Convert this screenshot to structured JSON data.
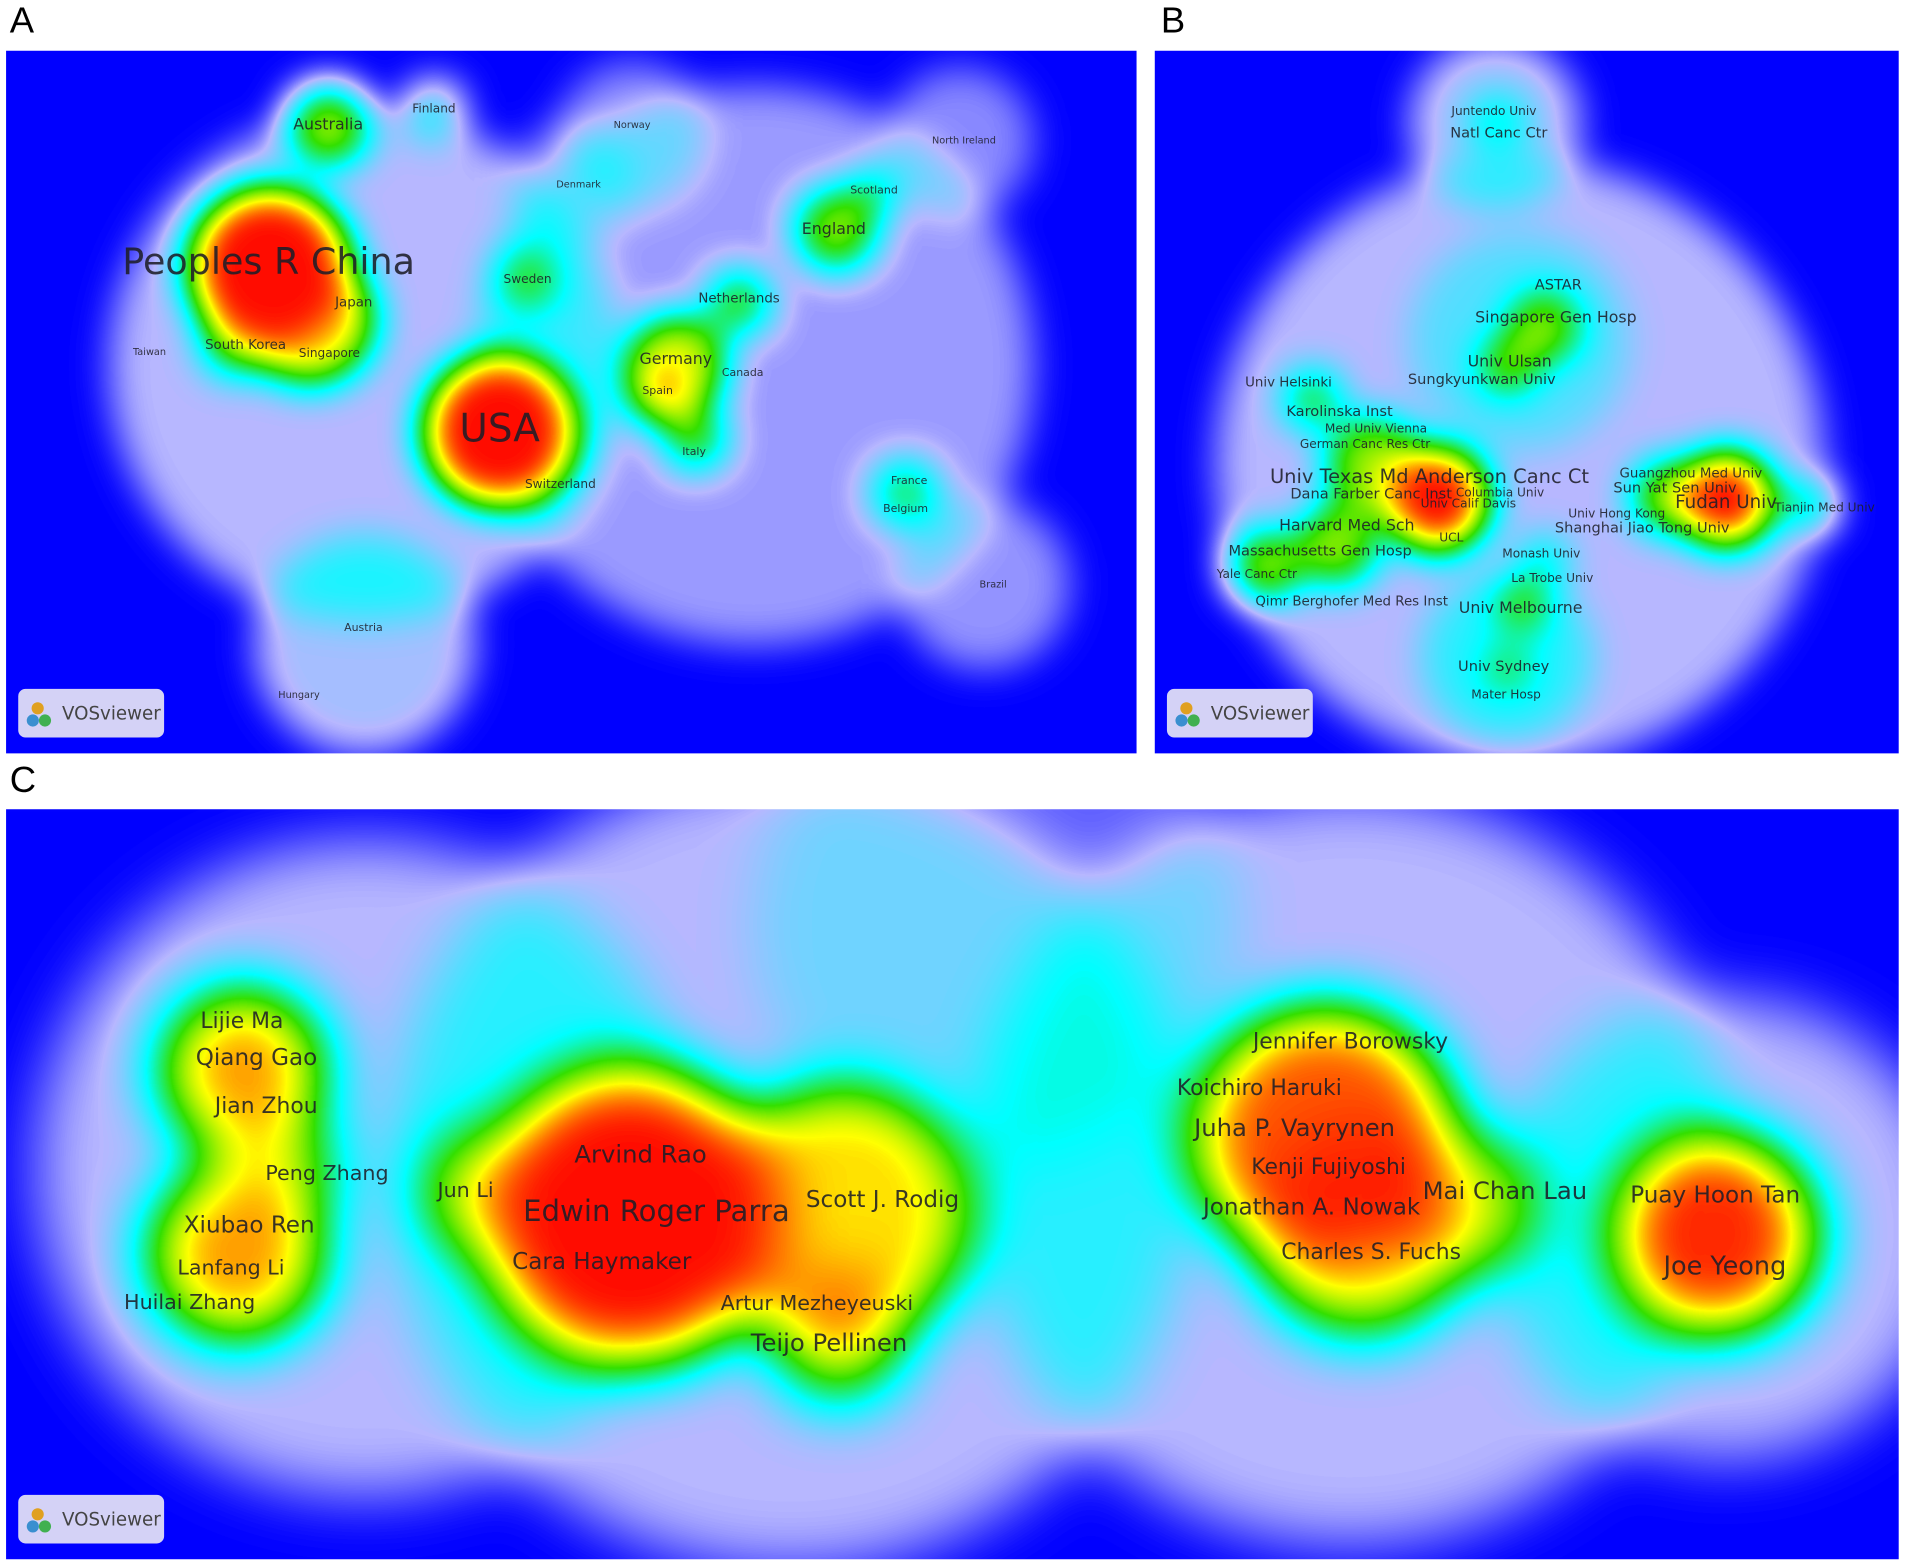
{
  "panels": [
    {
      "label": "A",
      "logo": "VOSviewer",
      "terms": [
        "Australia",
        "Finland",
        "Norway",
        "North Ireland",
        "Denmark",
        "Scotland",
        "England",
        "Peoples R China",
        "Sweden",
        "Netherlands",
        "Japan",
        "Taiwan",
        "South Korea",
        "Singapore",
        "Germany",
        "Canada",
        "Spain",
        "USA",
        "Italy",
        "Switzerland",
        "France",
        "Belgium",
        "Brazil",
        "Austria",
        "Hungary"
      ]
    },
    {
      "label": "B",
      "logo": "VOSviewer",
      "terms": [
        "Juntendo Univ",
        "Natl Canc Ctr",
        "ASTAR",
        "Singapore Gen Hosp",
        "Univ Ulsan",
        "Sungkyunkwan Univ",
        "Univ Helsinki",
        "Karolinska Inst",
        "Med Univ Vienna",
        "German Canc Res Ctr",
        "Univ Texas Md Anderson Canc Ct",
        "Dana Farber Canc Inst",
        "Columbia Univ",
        "Univ Calif Davis",
        "Guangzhou Med Univ",
        "Sun Yat Sen Univ",
        "Fudan Univ",
        "Tianjin Med Univ",
        "Univ Hong Kong",
        "Shanghai Jiao Tong Univ",
        "Harvard Med Sch",
        "UCL",
        "Massachusetts Gen Hosp",
        "Monash Univ",
        "Yale Canc Ctr",
        "La Trobe Univ",
        "Qimr Berghofer Med Res Inst",
        "Univ Melbourne",
        "Univ Sydney",
        "Mater Hosp"
      ]
    },
    {
      "label": "C",
      "logo": "VOSviewer",
      "terms": [
        "Lijie Ma",
        "Qiang Gao",
        "Jian Zhou",
        "Peng Zhang",
        "Xiubao Ren",
        "Lanfang Li",
        "Huilai Zhang",
        "Jun Li",
        "Arvind Rao",
        "Edwin Roger Parra",
        "Scott J. Rodig",
        "Cara Haymaker",
        "Artur Mezheyeuski",
        "Teijo Pellinen",
        "Jennifer Borowsky",
        "Koichiro Haruki",
        "Juha P. Vayrynen",
        "Kenji Fujiyoshi",
        "Mai Chan Lau",
        "Jonathan A. Nowak",
        "Charles S. Fuchs",
        "Puay Hoon Tan",
        "Joe Yeong"
      ]
    }
  ]
}
